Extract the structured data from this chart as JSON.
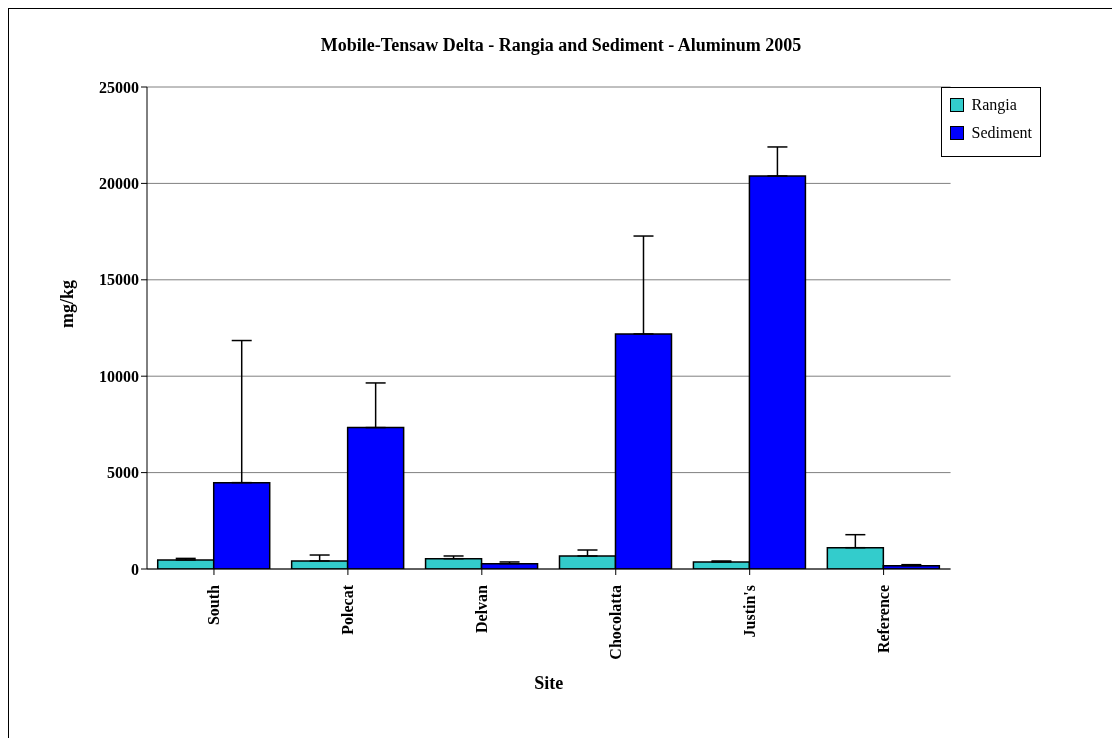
{
  "chart_data": {
    "type": "bar",
    "title": "Mobile-Tensaw Delta  - Rangia and Sediment - Aluminum 2005",
    "xlabel": "Site",
    "ylabel": "mg/kg",
    "categories": [
      "South",
      "Polecat",
      "Delvan",
      "Chocolatta",
      "Justin's",
      "Reference"
    ],
    "series": [
      {
        "name": "Rangia",
        "color": "#33cccc",
        "values": [
          470,
          415,
          535,
          675,
          365,
          1105
        ],
        "errors": [
          [
            470,
            550
          ],
          [
            415,
            725
          ],
          [
            535,
            675
          ],
          [
            675,
            985
          ],
          [
            365,
            415
          ],
          [
            1105,
            1780
          ]
        ]
      },
      {
        "name": "Sediment",
        "color": "#0000ff",
        "values": [
          4480,
          7335,
          275,
          12190,
          20385,
          175
        ],
        "errors": [
          [
            4480,
            11850
          ],
          [
            7335,
            9650
          ],
          [
            275,
            365
          ],
          [
            12190,
            17270
          ],
          [
            20385,
            21890
          ],
          [
            175,
            225
          ]
        ]
      }
    ],
    "ylim": [
      0,
      25000
    ],
    "yticks": [
      0,
      5000,
      10000,
      15000,
      20000,
      25000
    ],
    "grid": "y",
    "legend": "top right"
  }
}
